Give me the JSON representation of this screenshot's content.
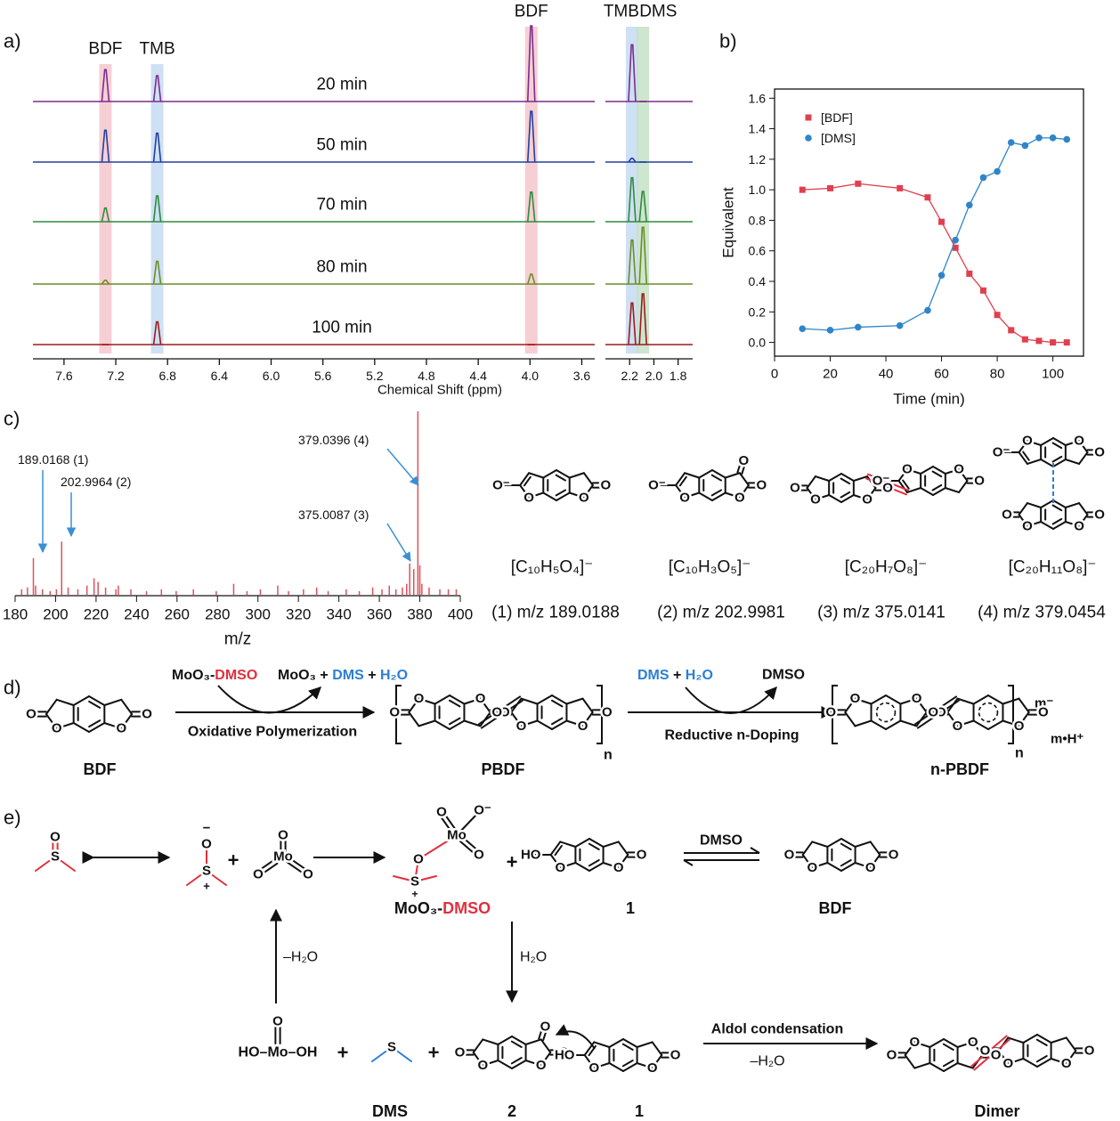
{
  "panel_labels": {
    "a": "a)",
    "b": "b)",
    "c": "c)",
    "d": "d)",
    "e": "e)"
  },
  "chart_data": [
    {
      "type": "nmr",
      "x_label": "Chemical Shift (ppm)",
      "segments": [
        {
          "xlim": [
            7.84,
            3.5
          ],
          "xticks": [
            7.6,
            7.2,
            6.8,
            6.4,
            {
              "value": 6,
              "label": "6.0"
            },
            5.6,
            5.2,
            4.8,
            4.4,
            {
              "value": 4,
              "label": "4.0"
            },
            3.6
          ]
        },
        {
          "xlim": [
            2.4,
            1.68
          ],
          "xticks": [
            2.2,
            {
              "value": 2,
              "label": "2.0"
            },
            1.8
          ]
        }
      ],
      "bands": [
        {
          "label": "BDF",
          "x": 7.28,
          "color": "#f5c7cd"
        },
        {
          "label": "TMB",
          "x": 6.88,
          "color": "#c5dbf1"
        },
        {
          "label": "BDF",
          "x": 3.99,
          "color": "#f5c7cd"
        },
        {
          "label": "TMB",
          "x": 2.18,
          "color": "#c5dbf1"
        },
        {
          "label": "DMS",
          "x": 2.09,
          "color": "#c6e0c6"
        }
      ],
      "series": [
        {
          "name": "20 min",
          "color": "#7b2d8e",
          "x": [
            7.28,
            6.88,
            3.99,
            2.18,
            2.09
          ],
          "values": [
            0.42,
            0.34,
            1.0,
            0.75,
            0
          ]
        },
        {
          "name": "50 min",
          "color": "#23409e",
          "x": [
            7.28,
            6.88,
            3.99,
            2.18,
            2.09
          ],
          "values": [
            0.42,
            0.38,
            0.67,
            0.05,
            0
          ]
        },
        {
          "name": "70 min",
          "color": "#2e8b3e",
          "x": [
            7.28,
            6.88,
            3.99,
            2.18,
            2.09
          ],
          "values": [
            0.18,
            0.34,
            0.39,
            0.58,
            0.4
          ]
        },
        {
          "name": "80 min",
          "color": "#6b8e23",
          "x": [
            7.28,
            6.88,
            3.99,
            2.18,
            2.09
          ],
          "values": [
            0.05,
            0.3,
            0.13,
            0.58,
            0.75
          ]
        },
        {
          "name": "100 min",
          "color": "#9b1c1c",
          "x": [
            7.28,
            6.88,
            3.99,
            2.18,
            2.09
          ],
          "values": [
            0,
            0.3,
            0,
            0.55,
            0.67
          ]
        }
      ]
    },
    {
      "type": "scatter",
      "x_label": "Time (min)",
      "y_label": "Equivalent",
      "xlim": [
        0,
        111
      ],
      "ylim": [
        -0.09,
        1.66
      ],
      "xticks": [
        0,
        20,
        40,
        60,
        80,
        100
      ],
      "yticks": [
        {
          "value": 0,
          "label": "0.0"
        },
        0.2,
        0.4,
        0.6,
        0.8,
        {
          "value": 1,
          "label": "1.0"
        },
        1.2,
        1.4,
        1.6
      ],
      "legend": "upper left",
      "series": [
        {
          "name": "[BDF]",
          "color": "#e0404e",
          "marker": "square",
          "x": [
            10,
            20,
            30,
            45,
            55,
            60,
            65,
            70,
            75,
            80,
            85,
            90,
            95,
            100,
            105
          ],
          "values": [
            1.0,
            1.01,
            1.04,
            1.01,
            0.95,
            0.79,
            0.62,
            0.45,
            0.34,
            0.18,
            0.08,
            0.02,
            0.01,
            0.0,
            0.0
          ]
        },
        {
          "name": "[DMS]",
          "color": "#2e86c8",
          "marker": "circle",
          "x": [
            10,
            20,
            30,
            45,
            55,
            60,
            65,
            70,
            75,
            80,
            85,
            90,
            95,
            100,
            105
          ],
          "values": [
            0.09,
            0.08,
            0.1,
            0.11,
            0.21,
            0.44,
            0.67,
            0.9,
            1.08,
            1.12,
            1.31,
            1.29,
            1.34,
            1.34,
            1.33
          ]
        }
      ]
    },
    {
      "type": "bar",
      "x_label": "m/z",
      "xlim": [
        180,
        400
      ],
      "xticks": [
        180,
        200,
        220,
        240,
        260,
        280,
        300,
        320,
        340,
        360,
        380,
        400
      ],
      "color": "#e0505a",
      "x": [
        183.2,
        186.1,
        189.0168,
        190.1,
        193.5,
        197.3,
        200.4,
        202.9964,
        206.2,
        211.0,
        215.5,
        219.0,
        221.0,
        224.7,
        229.8,
        231.0,
        237.2,
        244.9,
        252.3,
        259.6,
        268.1,
        279.4,
        288.0,
        294.6,
        301.2,
        309.8,
        315.1,
        322.5,
        329.0,
        334.7,
        343.6,
        350.1,
        356.7,
        361.3,
        364.9,
        368.2,
        371.4,
        373.5,
        375.0087,
        377.0,
        379.0396,
        380.0,
        381.0,
        384.6,
        389.9,
        394.1,
        398.0
      ],
      "values": [
        0.03,
        0.04,
        0.2,
        0.05,
        0.03,
        0.02,
        0.03,
        0.29,
        0.04,
        0.03,
        0.05,
        0.09,
        0.07,
        0.04,
        0.03,
        0.05,
        0.03,
        0.02,
        0.03,
        0.02,
        0.03,
        0.02,
        0.06,
        0.02,
        0.03,
        0.05,
        0.02,
        0.03,
        0.04,
        0.02,
        0.03,
        0.02,
        0.04,
        0.03,
        0.05,
        0.03,
        0.04,
        0.06,
        0.17,
        0.14,
        1.0,
        0.16,
        0.06,
        0.04,
        0.03,
        0.03,
        0.03
      ],
      "annotations": [
        "189.0168 (1)",
        "202.9964 (2)",
        "379.0396 (4)",
        "375.0087 (3)"
      ]
    }
  ],
  "ms_species": [
    {
      "formula": "[C₁₀H₅O₄]⁻",
      "mz": "(1) m/z 189.0188"
    },
    {
      "formula": "[C₁₀H₃O₅]⁻",
      "mz": "(2) m/z 202.9981"
    },
    {
      "formula": "[C₂₀H₇O₈]⁻",
      "mz": "(3) m/z 375.0141"
    },
    {
      "formula": "[C₂₀H₁₁O₈]⁻",
      "mz": "(4) m/z 379.0454"
    }
  ],
  "scheme_d": {
    "reagent": [
      "MoO₃-",
      "DMSO"
    ],
    "byproducts": [
      "MoO₃ + ",
      "DMS",
      " + ",
      "H₂O"
    ],
    "step1": "Oxidative Polymerization",
    "reagent2": [
      "DMS",
      " + ",
      "H₂O"
    ],
    "product2": "DMSO",
    "step2": "Reductive n-Doping",
    "labels": [
      "BDF",
      "PBDF",
      "n-PBDF"
    ],
    "repeat": "n",
    "charge": "m⁻",
    "counterion": "m•H⁺"
  },
  "scheme_e": {
    "dmso_complex": [
      "MoO₃-",
      "DMSO"
    ],
    "compound_1": "1",
    "bdf": "BDF",
    "eq_reagent": "DMSO",
    "step_down": "H₂O",
    "step_up": "–H₂O",
    "dms": "DMS",
    "compound_2": "2",
    "aldol": "Aldol condensation",
    "aldol_byproduct": "–H₂O",
    "dimer": "Dimer"
  },
  "atoms": {
    "O": "O",
    "S": "S",
    "Mo": "Mo",
    "HO": "HO",
    "O_minus": "O⁻",
    "minus": "−",
    "plus": "+",
    "HOMoOH": "HO–Mo–OH"
  }
}
